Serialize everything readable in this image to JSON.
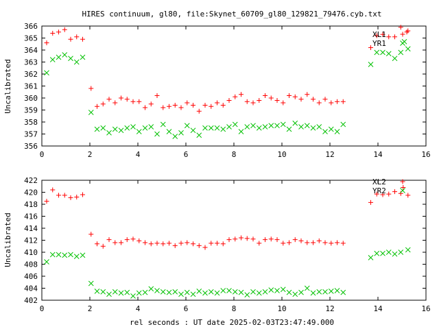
{
  "chart_data": {
    "type": "scatter",
    "title": "HIRES continuum, gl80, file:Skynet_60709_gl80_129821_79476.cyb.txt",
    "xlabel": "rel seconds : UT date 2025-02-03T23:47:49.000",
    "colors": {
      "red": "#ff0000",
      "green": "#00c000",
      "axis": "#000000",
      "background": "#ffffff"
    },
    "panels": [
      {
        "id": "top",
        "ylabel": "Uncalibrated",
        "xlim": [
          0,
          16
        ],
        "ylim": [
          356,
          366
        ],
        "xticks": [
          0,
          2,
          4,
          6,
          8,
          10,
          12,
          14,
          16
        ],
        "yticks": [
          356,
          357,
          358,
          359,
          360,
          361,
          362,
          363,
          364,
          365,
          366
        ],
        "legend_position": "top-right",
        "series": [
          {
            "name": "XL1",
            "marker": "plus",
            "color": "#ff0000",
            "points": [
              [
                0.2,
                364.6
              ],
              [
                0.45,
                365.4
              ],
              [
                0.7,
                365.5
              ],
              [
                0.95,
                365.7
              ],
              [
                1.2,
                364.9
              ],
              [
                1.45,
                365.1
              ],
              [
                1.7,
                364.9
              ],
              [
                2.05,
                360.8
              ],
              [
                2.3,
                359.3
              ],
              [
                2.55,
                359.5
              ],
              [
                2.8,
                359.9
              ],
              [
                3.05,
                359.6
              ],
              [
                3.3,
                360.0
              ],
              [
                3.55,
                359.9
              ],
              [
                3.8,
                359.7
              ],
              [
                4.05,
                359.7
              ],
              [
                4.3,
                359.2
              ],
              [
                4.55,
                359.5
              ],
              [
                4.8,
                360.2
              ],
              [
                5.05,
                359.2
              ],
              [
                5.3,
                359.3
              ],
              [
                5.55,
                359.4
              ],
              [
                5.8,
                359.2
              ],
              [
                6.05,
                359.6
              ],
              [
                6.3,
                359.4
              ],
              [
                6.55,
                358.9
              ],
              [
                6.8,
                359.4
              ],
              [
                7.05,
                359.3
              ],
              [
                7.3,
                359.6
              ],
              [
                7.55,
                359.4
              ],
              [
                7.8,
                359.8
              ],
              [
                8.05,
                360.1
              ],
              [
                8.3,
                360.3
              ],
              [
                8.55,
                359.7
              ],
              [
                8.8,
                359.6
              ],
              [
                9.05,
                359.8
              ],
              [
                9.3,
                360.2
              ],
              [
                9.55,
                360.0
              ],
              [
                9.8,
                359.8
              ],
              [
                10.05,
                359.6
              ],
              [
                10.3,
                360.2
              ],
              [
                10.55,
                360.1
              ],
              [
                10.8,
                359.9
              ],
              [
                11.05,
                360.3
              ],
              [
                11.3,
                359.9
              ],
              [
                11.55,
                359.6
              ],
              [
                11.8,
                359.9
              ],
              [
                12.05,
                359.6
              ],
              [
                12.3,
                359.7
              ],
              [
                12.55,
                359.7
              ],
              [
                13.7,
                364.2
              ],
              [
                13.95,
                365.2
              ],
              [
                14.2,
                365.3
              ],
              [
                14.45,
                365.1
              ],
              [
                14.7,
                365.1
              ],
              [
                14.95,
                365.9
              ],
              [
                15.2,
                365.5
              ],
              [
                15.25,
                365.6
              ]
            ]
          },
          {
            "name": "YR1",
            "marker": "cross",
            "color": "#00c000",
            "points": [
              [
                0.2,
                362.1
              ],
              [
                0.45,
                363.2
              ],
              [
                0.7,
                363.4
              ],
              [
                0.95,
                363.6
              ],
              [
                1.2,
                363.3
              ],
              [
                1.45,
                363.0
              ],
              [
                1.7,
                363.4
              ],
              [
                2.05,
                358.8
              ],
              [
                2.3,
                357.4
              ],
              [
                2.55,
                357.5
              ],
              [
                2.8,
                357.1
              ],
              [
                3.05,
                357.4
              ],
              [
                3.3,
                357.3
              ],
              [
                3.55,
                357.5
              ],
              [
                3.8,
                357.6
              ],
              [
                4.05,
                357.2
              ],
              [
                4.3,
                357.5
              ],
              [
                4.55,
                357.6
              ],
              [
                4.8,
                357.0
              ],
              [
                5.05,
                357.8
              ],
              [
                5.3,
                357.2
              ],
              [
                5.55,
                356.8
              ],
              [
                5.8,
                357.1
              ],
              [
                6.05,
                357.7
              ],
              [
                6.3,
                357.3
              ],
              [
                6.55,
                356.9
              ],
              [
                6.8,
                357.5
              ],
              [
                7.05,
                357.5
              ],
              [
                7.3,
                357.5
              ],
              [
                7.55,
                357.4
              ],
              [
                7.8,
                357.6
              ],
              [
                8.05,
                357.8
              ],
              [
                8.3,
                357.2
              ],
              [
                8.55,
                357.6
              ],
              [
                8.8,
                357.7
              ],
              [
                9.05,
                357.5
              ],
              [
                9.3,
                357.6
              ],
              [
                9.55,
                357.7
              ],
              [
                9.8,
                357.7
              ],
              [
                10.05,
                357.8
              ],
              [
                10.3,
                357.4
              ],
              [
                10.55,
                357.9
              ],
              [
                10.8,
                357.6
              ],
              [
                11.05,
                357.7
              ],
              [
                11.3,
                357.5
              ],
              [
                11.55,
                357.6
              ],
              [
                11.8,
                357.2
              ],
              [
                12.05,
                357.4
              ],
              [
                12.3,
                357.2
              ],
              [
                12.55,
                357.8
              ],
              [
                13.7,
                362.8
              ],
              [
                13.95,
                363.8
              ],
              [
                14.2,
                363.8
              ],
              [
                14.45,
                363.7
              ],
              [
                14.7,
                363.3
              ],
              [
                14.95,
                363.8
              ],
              [
                15.1,
                364.7
              ],
              [
                15.25,
                364.1
              ]
            ]
          }
        ]
      },
      {
        "id": "bottom",
        "ylabel": "Uncalibrated",
        "xlim": [
          0,
          16
        ],
        "ylim": [
          402,
          422
        ],
        "xticks": [
          0,
          2,
          4,
          6,
          8,
          10,
          12,
          14,
          16
        ],
        "yticks": [
          402,
          404,
          406,
          408,
          410,
          412,
          414,
          416,
          418,
          420,
          422
        ],
        "legend_position": "top-right",
        "series": [
          {
            "name": "XL2",
            "marker": "plus",
            "color": "#ff0000",
            "points": [
              [
                0.2,
                418.5
              ],
              [
                0.45,
                420.4
              ],
              [
                0.7,
                419.5
              ],
              [
                0.95,
                419.5
              ],
              [
                1.2,
                419.1
              ],
              [
                1.45,
                419.2
              ],
              [
                1.7,
                419.6
              ],
              [
                2.05,
                413.0
              ],
              [
                2.3,
                411.4
              ],
              [
                2.55,
                411.0
              ],
              [
                2.8,
                412.1
              ],
              [
                3.05,
                411.6
              ],
              [
                3.3,
                411.6
              ],
              [
                3.55,
                412.1
              ],
              [
                3.8,
                412.2
              ],
              [
                4.05,
                411.9
              ],
              [
                4.3,
                411.6
              ],
              [
                4.55,
                411.4
              ],
              [
                4.8,
                411.5
              ],
              [
                5.05,
                411.4
              ],
              [
                5.3,
                411.5
              ],
              [
                5.55,
                411.1
              ],
              [
                5.8,
                411.5
              ],
              [
                6.05,
                411.6
              ],
              [
                6.3,
                411.4
              ],
              [
                6.55,
                411.1
              ],
              [
                6.8,
                410.8
              ],
              [
                7.05,
                411.5
              ],
              [
                7.3,
                411.5
              ],
              [
                7.55,
                411.4
              ],
              [
                7.8,
                412.1
              ],
              [
                8.05,
                412.2
              ],
              [
                8.3,
                412.4
              ],
              [
                8.55,
                412.3
              ],
              [
                8.8,
                412.2
              ],
              [
                9.05,
                411.5
              ],
              [
                9.3,
                412.1
              ],
              [
                9.55,
                412.2
              ],
              [
                9.8,
                412.1
              ],
              [
                10.05,
                411.5
              ],
              [
                10.3,
                411.6
              ],
              [
                10.55,
                412.1
              ],
              [
                10.8,
                411.9
              ],
              [
                11.05,
                411.6
              ],
              [
                11.3,
                411.6
              ],
              [
                11.55,
                411.9
              ],
              [
                11.8,
                411.6
              ],
              [
                12.05,
                411.5
              ],
              [
                12.3,
                411.6
              ],
              [
                12.55,
                411.5
              ],
              [
                13.7,
                418.3
              ],
              [
                13.95,
                419.7
              ],
              [
                14.2,
                419.6
              ],
              [
                14.45,
                419.7
              ],
              [
                14.7,
                420.1
              ],
              [
                14.95,
                419.8
              ],
              [
                15.05,
                420.8
              ],
              [
                15.25,
                419.5
              ]
            ]
          },
          {
            "name": "YR2",
            "marker": "cross",
            "color": "#00c000",
            "points": [
              [
                0.2,
                408.4
              ],
              [
                0.45,
                409.6
              ],
              [
                0.7,
                409.6
              ],
              [
                0.95,
                409.5
              ],
              [
                1.2,
                409.6
              ],
              [
                1.45,
                409.3
              ],
              [
                1.7,
                409.5
              ],
              [
                2.05,
                404.8
              ],
              [
                2.3,
                403.5
              ],
              [
                2.55,
                403.4
              ],
              [
                2.8,
                403.0
              ],
              [
                3.05,
                403.4
              ],
              [
                3.3,
                403.2
              ],
              [
                3.55,
                403.3
              ],
              [
                3.8,
                402.7
              ],
              [
                4.05,
                403.2
              ],
              [
                4.3,
                403.3
              ],
              [
                4.55,
                403.9
              ],
              [
                4.8,
                403.6
              ],
              [
                5.05,
                403.4
              ],
              [
                5.3,
                403.3
              ],
              [
                5.55,
                403.4
              ],
              [
                5.8,
                403.0
              ],
              [
                6.05,
                403.3
              ],
              [
                6.3,
                403.0
              ],
              [
                6.55,
                403.5
              ],
              [
                6.8,
                403.2
              ],
              [
                7.05,
                403.4
              ],
              [
                7.3,
                403.2
              ],
              [
                7.55,
                403.6
              ],
              [
                7.8,
                403.6
              ],
              [
                8.05,
                403.4
              ],
              [
                8.3,
                403.3
              ],
              [
                8.55,
                402.9
              ],
              [
                8.8,
                403.4
              ],
              [
                9.05,
                403.2
              ],
              [
                9.3,
                403.4
              ],
              [
                9.55,
                403.7
              ],
              [
                9.8,
                403.6
              ],
              [
                10.05,
                403.8
              ],
              [
                10.3,
                403.3
              ],
              [
                10.55,
                403.0
              ],
              [
                10.8,
                403.3
              ],
              [
                11.05,
                404.0
              ],
              [
                11.3,
                403.2
              ],
              [
                11.55,
                403.4
              ],
              [
                11.8,
                403.4
              ],
              [
                12.05,
                403.5
              ],
              [
                12.3,
                403.6
              ],
              [
                12.55,
                403.3
              ],
              [
                13.7,
                409.1
              ],
              [
                13.95,
                409.8
              ],
              [
                14.2,
                409.8
              ],
              [
                14.45,
                410.0
              ],
              [
                14.7,
                409.7
              ],
              [
                14.95,
                410.0
              ],
              [
                15.25,
                410.4
              ]
            ]
          }
        ]
      }
    ]
  }
}
